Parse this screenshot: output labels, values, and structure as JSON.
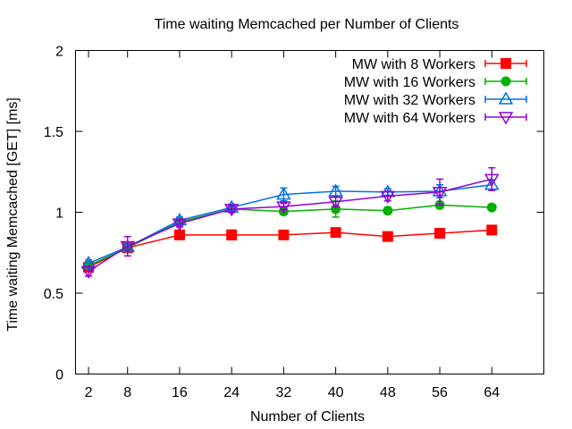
{
  "chart_data": {
    "type": "line",
    "title": "Time waiting Memcached per Number of Clients",
    "xlabel": "Number of Clients",
    "ylabel": "Time waiting Memcached [GET] [ms]",
    "x": [
      2,
      8,
      16,
      24,
      32,
      40,
      48,
      56,
      64
    ],
    "x_ticks": [
      "2",
      "8",
      "16",
      "24",
      "32",
      "40",
      "48",
      "56",
      "64"
    ],
    "xlim": [
      0,
      72
    ],
    "ylim": [
      0,
      2
    ],
    "y_ticks": [
      "0",
      "0.5",
      "1",
      "1.5",
      "2"
    ],
    "grid": false,
    "legend_position": "top-right",
    "series": [
      {
        "name": "MW with 8 Workers",
        "color": "#ff0000",
        "marker": "filled-square",
        "values": [
          0.66,
          0.78,
          0.86,
          0.86,
          0.86,
          0.875,
          0.85,
          0.87,
          0.89
        ],
        "errors": [
          0.02,
          0.01,
          0.02,
          0.03,
          0.02,
          0.02,
          0.02,
          0.02,
          0.02
        ]
      },
      {
        "name": "MW with 16 Workers",
        "color": "#00b000",
        "marker": "filled-circle",
        "values": [
          0.67,
          0.78,
          0.94,
          1.02,
          1.005,
          1.02,
          1.01,
          1.045,
          1.03
        ],
        "errors": [
          0.02,
          0.02,
          0.02,
          0.02,
          0.02,
          0.05,
          0.02,
          0.02,
          0.015
        ]
      },
      {
        "name": "MW with 32 Workers",
        "color": "#0070e0",
        "marker": "open-triangle-up",
        "values": [
          0.685,
          0.785,
          0.95,
          1.03,
          1.11,
          1.13,
          1.125,
          1.13,
          1.17
        ],
        "errors": [
          0.02,
          0.02,
          0.02,
          0.02,
          0.04,
          0.03,
          0.02,
          0.04,
          0.03
        ]
      },
      {
        "name": "MW with 64 Workers",
        "color": "#9400d3",
        "marker": "open-triangle-down",
        "values": [
          0.635,
          0.79,
          0.93,
          1.02,
          1.035,
          1.065,
          1.1,
          1.125,
          1.205
        ],
        "errors": [
          0.03,
          0.06,
          0.02,
          0.02,
          0.02,
          0.03,
          0.03,
          0.08,
          0.07
        ]
      }
    ]
  }
}
